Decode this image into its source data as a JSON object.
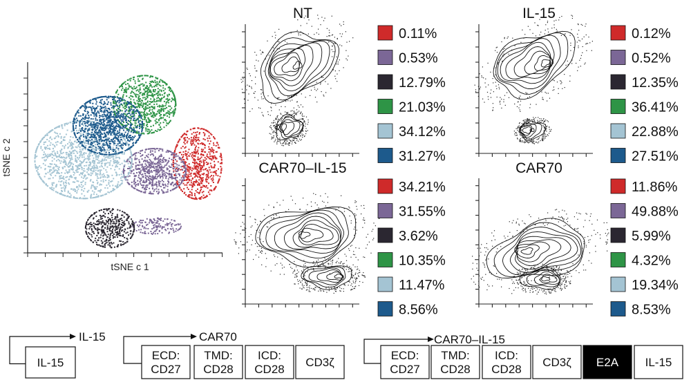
{
  "colors": {
    "red": "#cf2a2a",
    "purple": "#7b6796",
    "black": "#2b2731",
    "green": "#2e9446",
    "lightblue": "#a4c4d3",
    "blue": "#1d5a8c",
    "axis": "#222222"
  },
  "tsne": {
    "xlabel": "tSNE c 1",
    "ylabel": "tSNE c 2"
  },
  "chart_data": [
    {
      "type": "scatter",
      "title": "",
      "xlabel": "tSNE c 1",
      "ylabel": "tSNE c 2",
      "clusters": [
        {
          "name": "red",
          "color": "#cf2a2a",
          "center": [
            0.83,
            0.53
          ],
          "spread": [
            0.07,
            0.11
          ],
          "count": 650
        },
        {
          "name": "purple",
          "color": "#7b6796",
          "center": [
            0.62,
            0.57
          ],
          "spread": [
            0.09,
            0.07
          ],
          "count": 700
        },
        {
          "name": "purple-small",
          "color": "#7b6796",
          "center": [
            0.63,
            0.86
          ],
          "spread": [
            0.07,
            0.025
          ],
          "count": 140
        },
        {
          "name": "black",
          "color": "#2b2731",
          "center": [
            0.4,
            0.87
          ],
          "spread": [
            0.07,
            0.06
          ],
          "count": 420
        },
        {
          "name": "green",
          "color": "#2e9446",
          "center": [
            0.57,
            0.22
          ],
          "spread": [
            0.09,
            0.09
          ],
          "count": 800
        },
        {
          "name": "lightblue",
          "color": "#a4c4d3",
          "center": [
            0.27,
            0.51
          ],
          "spread": [
            0.14,
            0.12
          ],
          "count": 1300
        },
        {
          "name": "blue",
          "color": "#1d5a8c",
          "center": [
            0.39,
            0.33
          ],
          "spread": [
            0.1,
            0.09
          ],
          "count": 1100
        }
      ]
    },
    {
      "type": "contour",
      "title": "NT",
      "legend": [
        {
          "color": "red",
          "value": "0.11%"
        },
        {
          "color": "purple",
          "value": "0.53%"
        },
        {
          "color": "black",
          "value": "12.79%"
        },
        {
          "color": "green",
          "value": "21.03%"
        },
        {
          "color": "lightblue",
          "value": "34.12%"
        },
        {
          "color": "blue",
          "value": "31.27%"
        }
      ]
    },
    {
      "type": "contour",
      "title": "IL-15",
      "legend": [
        {
          "color": "red",
          "value": "0.12%"
        },
        {
          "color": "purple",
          "value": "0.52%"
        },
        {
          "color": "black",
          "value": "12.35%"
        },
        {
          "color": "green",
          "value": "36.41%"
        },
        {
          "color": "lightblue",
          "value": "22.88%"
        },
        {
          "color": "blue",
          "value": "27.51%"
        }
      ]
    },
    {
      "type": "contour",
      "title": "CAR70–IL-15",
      "legend": [
        {
          "color": "red",
          "value": "34.21%"
        },
        {
          "color": "purple",
          "value": "31.55%"
        },
        {
          "color": "black",
          "value": "3.62%"
        },
        {
          "color": "green",
          "value": "10.35%"
        },
        {
          "color": "lightblue",
          "value": "11.47%"
        },
        {
          "color": "blue",
          "value": "8.56%"
        }
      ]
    },
    {
      "type": "contour",
      "title": "CAR70",
      "legend": [
        {
          "color": "red",
          "value": "11.86%"
        },
        {
          "color": "purple",
          "value": "49.88%"
        },
        {
          "color": "black",
          "value": "5.99%"
        },
        {
          "color": "green",
          "value": "4.32%"
        },
        {
          "color": "lightblue",
          "value": "19.34%"
        },
        {
          "color": "blue",
          "value": "8.53%"
        }
      ]
    }
  ],
  "constructs": [
    {
      "name": "IL-15",
      "boxes": [
        {
          "lines": [
            "IL-15"
          ],
          "filled": false
        }
      ]
    },
    {
      "name": "CAR70",
      "boxes": [
        {
          "lines": [
            "ECD:",
            "CD27"
          ],
          "filled": false
        },
        {
          "lines": [
            "TMD:",
            "CD28"
          ],
          "filled": false
        },
        {
          "lines": [
            "ICD:",
            "CD28"
          ],
          "filled": false
        },
        {
          "lines": [
            "CD3ζ"
          ],
          "filled": false
        }
      ]
    },
    {
      "name": "CAR70–IL-15",
      "boxes": [
        {
          "lines": [
            "ECD:",
            "CD27"
          ],
          "filled": false
        },
        {
          "lines": [
            "TMD:",
            "CD28"
          ],
          "filled": false
        },
        {
          "lines": [
            "ICD:",
            "CD28"
          ],
          "filled": false
        },
        {
          "lines": [
            "CD3ζ"
          ],
          "filled": false
        },
        {
          "lines": [
            "E2A"
          ],
          "filled": true
        },
        {
          "lines": [
            "IL-15"
          ],
          "filled": false
        }
      ]
    }
  ]
}
